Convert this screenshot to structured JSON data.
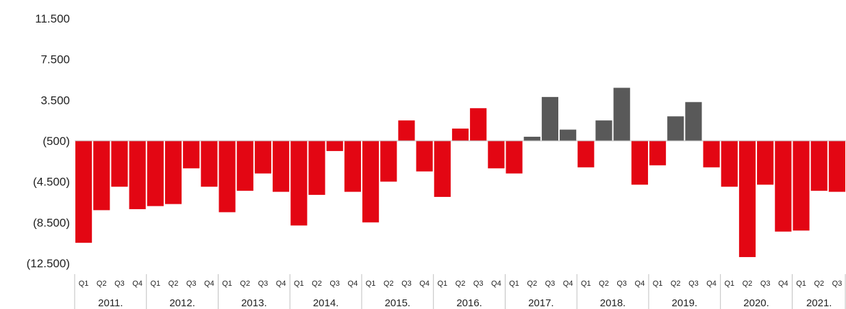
{
  "chart_data": {
    "type": "bar",
    "title": "",
    "xlabel": "",
    "ylabel": "",
    "ylim": [
      -12500,
      11500
    ],
    "yticks": [
      11500,
      7500,
      3500,
      -500,
      -4500,
      -8500,
      -12500
    ],
    "ytick_labels": [
      "11.500",
      "7.500",
      "3.500",
      "(500)",
      "(4.500)",
      "(8.500)",
      "(12.500)"
    ],
    "baseline": -500,
    "grid": false,
    "legend": "none",
    "colors": {
      "below_baseline": "#E30613",
      "above_baseline_2016_and_earlier": "#E30613",
      "above_baseline_2017_2019": "#595959"
    },
    "years": [
      {
        "label": "2011.",
        "quarters": [
          "Q1",
          "Q2",
          "Q3",
          "Q4"
        ]
      },
      {
        "label": "2012.",
        "quarters": [
          "Q1",
          "Q2",
          "Q3",
          "Q4"
        ]
      },
      {
        "label": "2013.",
        "quarters": [
          "Q1",
          "Q2",
          "Q3",
          "Q4"
        ]
      },
      {
        "label": "2014.",
        "quarters": [
          "Q1",
          "Q2",
          "Q3",
          "Q4"
        ]
      },
      {
        "label": "2015.",
        "quarters": [
          "Q1",
          "Q2",
          "Q3",
          "Q4"
        ]
      },
      {
        "label": "2016.",
        "quarters": [
          "Q1",
          "Q2",
          "Q3",
          "Q4"
        ]
      },
      {
        "label": "2017.",
        "quarters": [
          "Q1",
          "Q2",
          "Q3",
          "Q4"
        ]
      },
      {
        "label": "2018.",
        "quarters": [
          "Q1",
          "Q2",
          "Q3",
          "Q4"
        ]
      },
      {
        "label": "2019.",
        "quarters": [
          "Q1",
          "Q2",
          "Q3",
          "Q4"
        ]
      },
      {
        "label": "2020.",
        "quarters": [
          "Q1",
          "Q2",
          "Q3",
          "Q4"
        ]
      },
      {
        "label": "2021.",
        "quarters": [
          "Q1",
          "Q2",
          "Q3"
        ]
      }
    ],
    "values": [
      -10500,
      -7300,
      -5000,
      -7200,
      -6900,
      -6700,
      -3200,
      -5000,
      -7500,
      -5400,
      -3700,
      -5500,
      -8800,
      -5800,
      -1500,
      -5500,
      -8500,
      -4500,
      1500,
      -3500,
      -6000,
      700,
      2700,
      -3200,
      -3700,
      -100,
      3800,
      600,
      -3100,
      1500,
      4700,
      -4800,
      -2900,
      1900,
      3300,
      -3100,
      -5000,
      -11900,
      -4800,
      -9400,
      -9300,
      -5400,
      -5500
    ],
    "bar_colors": [
      "#E30613",
      "#E30613",
      "#E30613",
      "#E30613",
      "#E30613",
      "#E30613",
      "#E30613",
      "#E30613",
      "#E30613",
      "#E30613",
      "#E30613",
      "#E30613",
      "#E30613",
      "#E30613",
      "#E30613",
      "#E30613",
      "#E30613",
      "#E30613",
      "#E30613",
      "#E30613",
      "#E30613",
      "#E30613",
      "#E30613",
      "#E30613",
      "#E30613",
      "#595959",
      "#595959",
      "#595959",
      "#E30613",
      "#595959",
      "#595959",
      "#E30613",
      "#E30613",
      "#595959",
      "#595959",
      "#E30613",
      "#E30613",
      "#E30613",
      "#E30613",
      "#E30613",
      "#E30613",
      "#E30613",
      "#E30613"
    ]
  }
}
